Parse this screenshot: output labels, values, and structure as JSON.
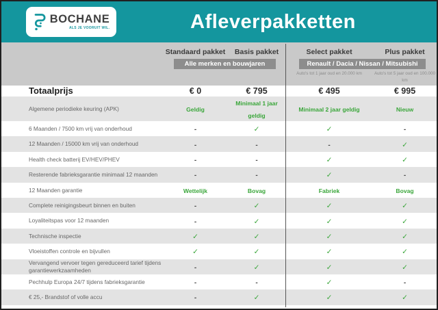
{
  "header": {
    "brand": "BOCHANE",
    "tagline": "ALS JE VOORUIT WIL.",
    "title": "Afleverpakketten"
  },
  "icons": {
    "check": "✓",
    "dash": "-",
    "logo_mark": "bochane-b-mark"
  },
  "colors": {
    "teal": "#14969e",
    "green": "#3aa63a",
    "head_gray": "#c9c9c9",
    "banner_gray": "#8d8d8d",
    "stripe_gray": "#e3e3e3"
  },
  "table": {
    "package_names": [
      "Standaard pakket",
      "Basis pakket",
      "Select pakket",
      "Plus pakket"
    ],
    "groups": [
      {
        "banner": "Alle merken en bouwjaren",
        "subnotes": [
          "",
          ""
        ]
      },
      {
        "banner": "Renault / Dacia / Nissan / Mitsubishi",
        "subnotes": [
          "Auto's tot 1 jaar oud en 20.000 km",
          "Auto's tot 5 jaar oud en 100.000 km"
        ]
      }
    ],
    "total_row": {
      "label": "Totaalprijs",
      "values": [
        "€ 0",
        "€ 795",
        "€ 495",
        "€ 995"
      ]
    },
    "rows": [
      {
        "label": "Algemene periodieke keuring (APK)",
        "values": [
          "Geldig",
          "Minimaal 1 jaar geldig",
          "Minimaal 2 jaar geldig",
          "Nieuw"
        ]
      },
      {
        "label": "6 Maanden / 7500 km vrij van onderhoud",
        "values": [
          "no",
          "yes",
          "yes",
          "no"
        ]
      },
      {
        "label": "12 Maanden / 15000 km vrij van onderhoud",
        "values": [
          "no",
          "no",
          "no",
          "yes"
        ]
      },
      {
        "label": "Health check batterij EV/HEV/PHEV",
        "values": [
          "no",
          "no",
          "yes",
          "yes"
        ]
      },
      {
        "label": "Resterende fabrieksgarantie minimaal 12 maanden",
        "values": [
          "no",
          "no",
          "yes",
          "no"
        ]
      },
      {
        "label": "12 Maanden  garantie",
        "values": [
          "Wettelijk",
          "Bovag",
          "Fabriek",
          "Bovag"
        ]
      },
      {
        "label": "Complete reinigingsbeurt binnen en buiten",
        "values": [
          "no",
          "yes",
          "yes",
          "yes"
        ]
      },
      {
        "label": "Loyaliteitspas voor 12 maanden",
        "values": [
          "no",
          "yes",
          "yes",
          "yes"
        ]
      },
      {
        "label": "Technische inspectie",
        "values": [
          "yes",
          "yes",
          "yes",
          "yes"
        ]
      },
      {
        "label": "Vloeistoffen controle en bijvullen",
        "values": [
          "yes",
          "yes",
          "yes",
          "yes"
        ]
      },
      {
        "label": "Vervangend vervoer tegen gereduceerd tarief tijdens garantiewerkzaamheden",
        "values": [
          "no",
          "yes",
          "yes",
          "yes"
        ]
      },
      {
        "label": "Pechhulp Europa 24/7 tijdens fabrieksgarantie",
        "values": [
          "no",
          "no",
          "yes",
          "no"
        ]
      },
      {
        "label": "€ 25,- Brandstof of  volle accu",
        "values": [
          "no",
          "yes",
          "yes",
          "yes"
        ]
      }
    ]
  }
}
